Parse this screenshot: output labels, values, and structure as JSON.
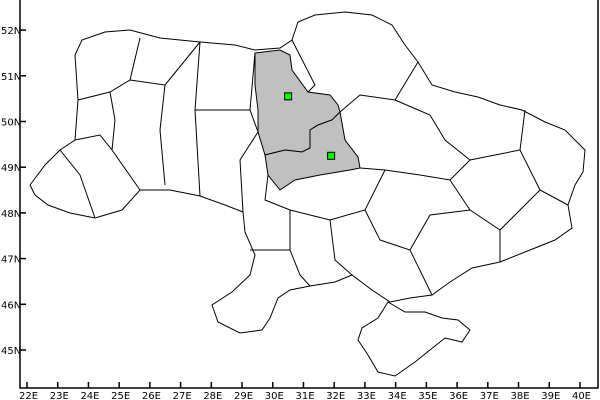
{
  "map": {
    "axes": {
      "lat_labels": [
        "45N",
        "46N",
        "47N",
        "48N",
        "49N",
        "50N",
        "51N",
        "52N"
      ],
      "lat_values": [
        45,
        46,
        47,
        48,
        49,
        50,
        51,
        52
      ],
      "lon_labels": [
        "22E",
        "23E",
        "24E",
        "25E",
        "26E",
        "27E",
        "28E",
        "29E",
        "30E",
        "31E",
        "32E",
        "33E",
        "34E",
        "35E",
        "36E",
        "37E",
        "38E",
        "39E",
        "40E"
      ],
      "lon_values": [
        22,
        23,
        24,
        25,
        26,
        27,
        28,
        29,
        30,
        31,
        32,
        33,
        34,
        35,
        36,
        37,
        38,
        39,
        40
      ]
    },
    "highlighted_regions_color": "#c0c0c0",
    "marker_color": "#00ff00",
    "markers": [
      {
        "lon": 30.5,
        "lat": 50.55
      },
      {
        "lon": 31.9,
        "lat": 49.25
      }
    ]
  }
}
